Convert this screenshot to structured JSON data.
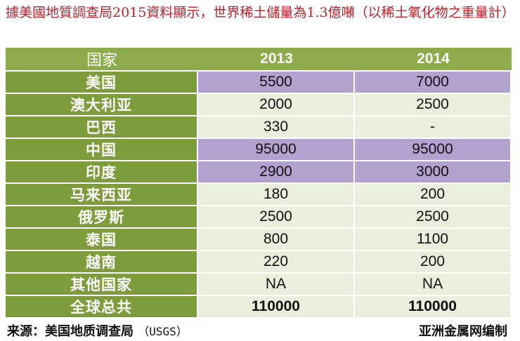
{
  "heading": "據美國地質調查局2015資料顯示，世界稀土儲量為1.3億噸（以稀土氧化物之重量計）",
  "table": {
    "headers": [
      "国家",
      "2013",
      "2014"
    ],
    "rows": [
      {
        "country": "美国",
        "v2013": "5500",
        "v2014": "7000",
        "style": "purple"
      },
      {
        "country": "澳大利亚",
        "v2013": "2000",
        "v2014": "2500",
        "style": "light"
      },
      {
        "country": "巴西",
        "v2013": "330",
        "v2014": "-",
        "style": "light"
      },
      {
        "country": "中国",
        "v2013": "95000",
        "v2014": "95000",
        "style": "purple"
      },
      {
        "country": "印度",
        "v2013": "2900",
        "v2014": "3000",
        "style": "purple"
      },
      {
        "country": "马来西亚",
        "v2013": "180",
        "v2014": "200",
        "style": "light"
      },
      {
        "country": "俄罗斯",
        "v2013": "2500",
        "v2014": "2500",
        "style": "light"
      },
      {
        "country": "泰国",
        "v2013": "800",
        "v2014": "1100",
        "style": "light"
      },
      {
        "country": "越南",
        "v2013": "220",
        "v2014": "200",
        "style": "light"
      },
      {
        "country": "其他国家",
        "v2013": "NA",
        "v2014": "NA",
        "style": "light"
      },
      {
        "country": "全球总共",
        "v2013": "110000",
        "v2014": "110000",
        "style": "light total"
      }
    ]
  },
  "footer": {
    "source_label": "来源：美国地质调查局",
    "source_abbr": "（USGS）",
    "credit": "亚洲金属网编制"
  },
  "colors": {
    "heading": "#c0202a",
    "header_green": "#8dab4a",
    "country_green": "#7d9d3c",
    "purple_row": "#b3a2cf",
    "light_row": "#e9efdc"
  }
}
